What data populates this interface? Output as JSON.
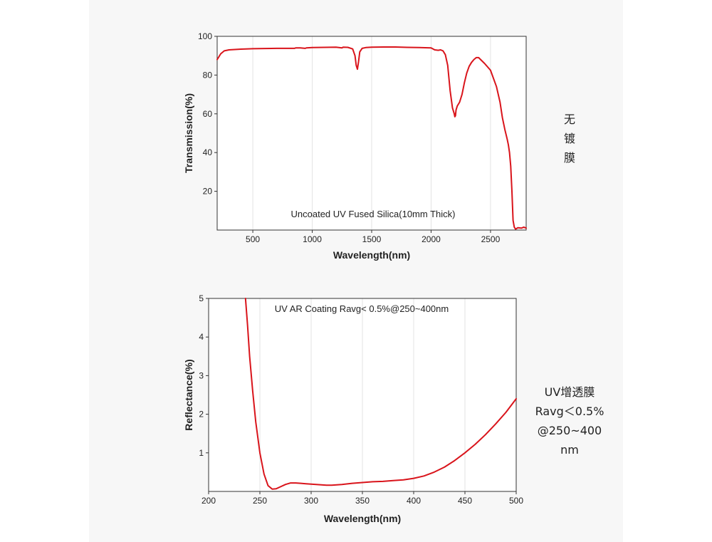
{
  "chart_data": [
    {
      "type": "line",
      "title": "Uncoated UV Fused Silica(10mm Thick)",
      "xlabel": "Wavelength(nm)",
      "ylabel": "Transmission(%)",
      "xlim": [
        200,
        2800
      ],
      "ylim": [
        0,
        100
      ],
      "xticks": [
        "500",
        "1000",
        "1500",
        "2000",
        "2500"
      ],
      "yticks": [
        "20",
        "40",
        "60",
        "80",
        "100"
      ],
      "grid": "vertical",
      "line_color": "#d9141b",
      "x": [
        200,
        215,
        230,
        260,
        300,
        400,
        500,
        600,
        700,
        850,
        860,
        900,
        940,
        950,
        1000,
        1100,
        1200,
        1250,
        1260,
        1300,
        1340,
        1360,
        1370,
        1380,
        1390,
        1400,
        1420,
        1450,
        1500,
        1600,
        1700,
        1800,
        1900,
        2000,
        2030,
        2060,
        2080,
        2100,
        2120,
        2140,
        2160,
        2180,
        2195,
        2200,
        2205,
        2210,
        2220,
        2240,
        2260,
        2280,
        2300,
        2320,
        2340,
        2360,
        2380,
        2400,
        2450,
        2500,
        2550,
        2580,
        2600,
        2620,
        2640,
        2650,
        2660,
        2670,
        2680,
        2690,
        2700,
        2710,
        2720,
        2730,
        2760,
        2780,
        2800
      ],
      "y": [
        88.0,
        89.5,
        91.0,
        92.5,
        93.0,
        93.4,
        93.6,
        93.7,
        93.8,
        93.8,
        94.0,
        94.0,
        93.8,
        94.0,
        94.2,
        94.3,
        94.4,
        94.0,
        94.4,
        94.3,
        93.5,
        90.0,
        85.0,
        83.0,
        87.0,
        92.0,
        93.8,
        94.2,
        94.4,
        94.5,
        94.5,
        94.3,
        94.2,
        94.0,
        93.0,
        92.8,
        93.0,
        92.5,
        90.5,
        85.0,
        72.0,
        63.0,
        60.0,
        58.5,
        59.0,
        62.0,
        64.0,
        66.0,
        70.0,
        76.0,
        81.0,
        84.5,
        86.5,
        88.0,
        89.0,
        89.0,
        86.0,
        82.5,
        74.0,
        66.0,
        58.0,
        52.0,
        47.0,
        44.0,
        40.0,
        33.0,
        20.0,
        5.0,
        1.5,
        0.5,
        0.8,
        1.2,
        1.0,
        1.5,
        1.0
      ]
    },
    {
      "type": "line",
      "title": "UV AR Coating Ravg< 0.5%@250~400nm",
      "xlabel": "Wavelength(nm)",
      "ylabel": "Reflectance(%)",
      "xlim": [
        200,
        500
      ],
      "ylim": [
        0,
        5
      ],
      "xticks": [
        "200",
        "250",
        "300",
        "350",
        "400",
        "450",
        "500"
      ],
      "yticks": [
        "1",
        "2",
        "3",
        "4",
        "5"
      ],
      "grid": "vertical",
      "line_color": "#d9141b",
      "x": [
        236,
        238,
        240,
        243,
        246,
        250,
        254,
        258,
        262,
        266,
        270,
        275,
        280,
        285,
        290,
        295,
        300,
        305,
        310,
        315,
        320,
        330,
        340,
        350,
        360,
        370,
        380,
        390,
        400,
        410,
        420,
        430,
        440,
        450,
        460,
        470,
        480,
        490,
        500
      ],
      "y": [
        5.0,
        4.3,
        3.5,
        2.6,
        1.8,
        1.0,
        0.45,
        0.15,
        0.06,
        0.07,
        0.12,
        0.18,
        0.22,
        0.22,
        0.21,
        0.2,
        0.19,
        0.18,
        0.17,
        0.16,
        0.16,
        0.18,
        0.21,
        0.23,
        0.25,
        0.26,
        0.28,
        0.3,
        0.34,
        0.4,
        0.5,
        0.63,
        0.8,
        1.0,
        1.22,
        1.47,
        1.75,
        2.05,
        2.4
      ]
    }
  ],
  "side_notes": {
    "top": [
      "无",
      "镀",
      "膜"
    ],
    "bottom": [
      "UV增透膜",
      "Ravg＜0.5%",
      "@250~400",
      "nm"
    ]
  }
}
